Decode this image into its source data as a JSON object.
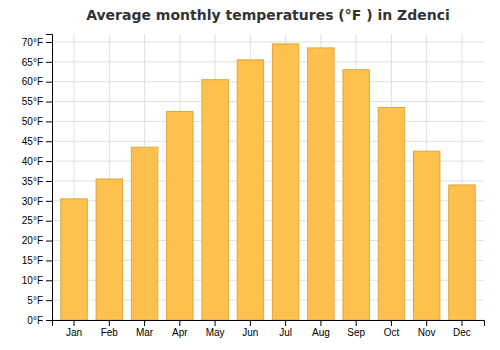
{
  "chart_data": {
    "type": "bar",
    "title": "Average monthly temperatures (°F ) in Zdenci",
    "categories": [
      "Jan",
      "Feb",
      "Mar",
      "Apr",
      "May",
      "Jun",
      "Jul",
      "Aug",
      "Sep",
      "Oct",
      "Nov",
      "Dec"
    ],
    "values": [
      30.5,
      35.5,
      43.5,
      52.5,
      60.5,
      65.5,
      69.5,
      68.5,
      63.0,
      53.5,
      42.5,
      34.0
    ],
    "color": "#FFC14D",
    "ylim": [
      0,
      72
    ],
    "yticks": [
      {
        "value": 0,
        "label": "0°F"
      },
      {
        "value": 5,
        "label": "5°F"
      },
      {
        "value": 10,
        "label": "10°F"
      },
      {
        "value": 15,
        "label": "15°F"
      },
      {
        "value": 20,
        "label": "20°F"
      },
      {
        "value": 25,
        "label": "25°F"
      },
      {
        "value": 30,
        "label": "30°F"
      },
      {
        "value": 35,
        "label": "35°F"
      },
      {
        "value": 40,
        "label": "40°F"
      },
      {
        "value": 45,
        "label": "45°F"
      },
      {
        "value": 50,
        "label": "50°F"
      },
      {
        "value": 55,
        "label": "55°F"
      },
      {
        "value": 60,
        "label": "60°F"
      },
      {
        "value": 65,
        "label": "65°F"
      },
      {
        "value": 70,
        "label": "70°F"
      }
    ],
    "grid": true
  }
}
